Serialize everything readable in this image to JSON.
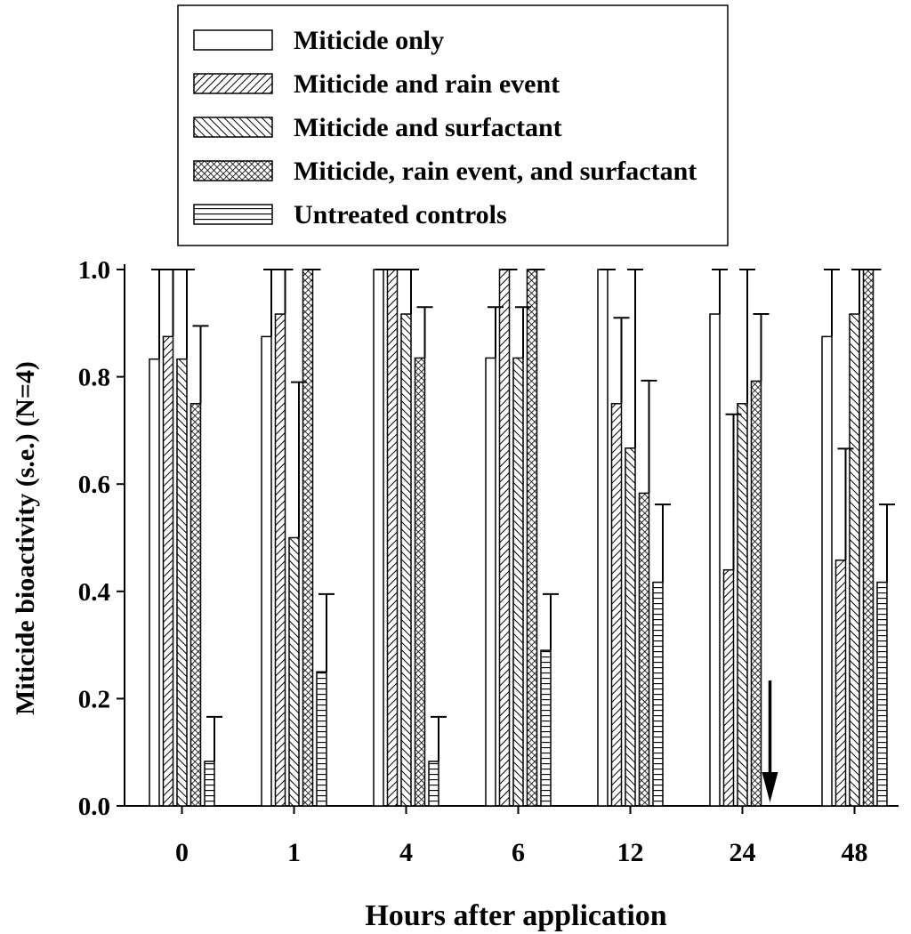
{
  "chart_data": {
    "type": "bar",
    "title": "",
    "xlabel": "Hours after application",
    "ylabel": "Miticide bioactivity (s.e.) (N=4)",
    "ylim": [
      0,
      1.0
    ],
    "yticks": [
      0.0,
      0.2,
      0.4,
      0.6,
      0.8,
      1.0
    ],
    "ytick_labels": [
      "0.0",
      "0.2",
      "0.4",
      "0.6",
      "0.8",
      "1.0"
    ],
    "categories": [
      "0",
      "1",
      "4",
      "6",
      "12",
      "24",
      "48"
    ],
    "legend_position": "top",
    "series": [
      {
        "name": "Miticide only",
        "pattern": "open",
        "values": [
          0.833,
          0.875,
          1.0,
          0.835,
          1.0,
          0.917,
          0.875
        ],
        "errors": [
          0.167,
          0.125,
          0.0,
          0.095,
          0.0,
          0.083,
          0.125
        ]
      },
      {
        "name": "Miticide and rain event",
        "pattern": "hatch-right",
        "values": [
          0.875,
          0.917,
          1.0,
          1.0,
          0.75,
          0.44,
          0.458
        ],
        "errors": [
          0.125,
          0.083,
          0.0,
          0.0,
          0.16,
          0.29,
          0.208
        ]
      },
      {
        "name": "Miticide and  surfactant",
        "pattern": "hatch-left",
        "values": [
          0.833,
          0.5,
          0.917,
          0.835,
          0.667,
          0.75,
          0.917
        ],
        "errors": [
          0.167,
          0.29,
          0.083,
          0.095,
          0.333,
          0.25,
          0.083
        ]
      },
      {
        "name": "Miticide, rain event, and surfactant",
        "pattern": "crosshatch",
        "values": [
          0.75,
          1.0,
          0.835,
          1.0,
          0.583,
          0.792,
          1.0
        ],
        "errors": [
          0.145,
          0.0,
          0.095,
          0.0,
          0.21,
          0.125,
          0.0
        ]
      },
      {
        "name": "Untreated controls",
        "pattern": "horizontal",
        "values": [
          0.083,
          0.25,
          0.083,
          0.29,
          0.417,
          null,
          0.417
        ],
        "errors": [
          0.083,
          0.145,
          0.083,
          0.105,
          0.145,
          null,
          0.145
        ]
      }
    ],
    "annotations": [
      {
        "type": "arrow-down",
        "category": "24",
        "slot": 4,
        "note": "no data for untreated controls"
      }
    ]
  }
}
